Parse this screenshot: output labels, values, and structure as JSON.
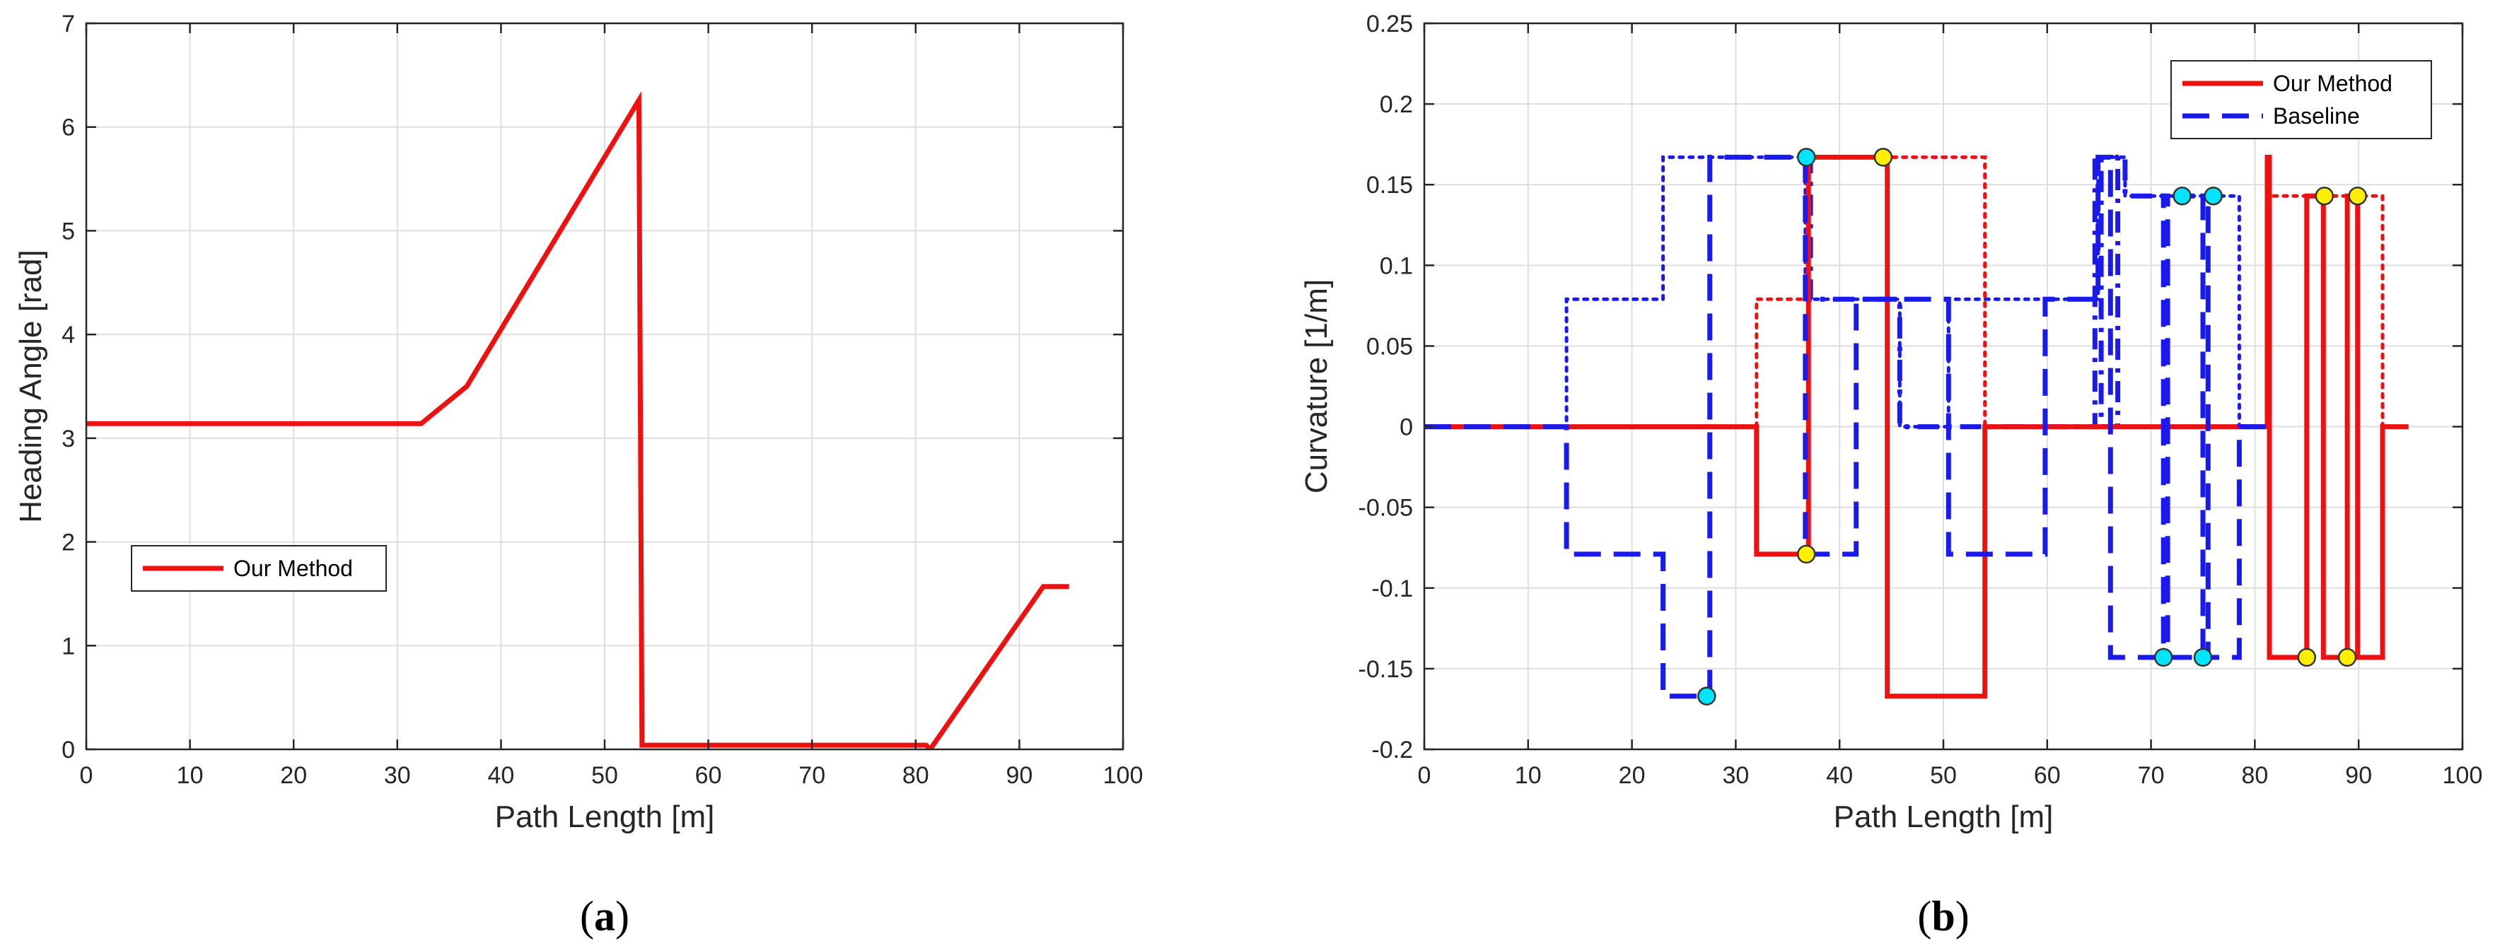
{
  "chart_data": [
    {
      "type": "line",
      "panel_label": "a",
      "xlabel": "Path Length [m]",
      "ylabel": "Heading Angle [rad]",
      "xlim": [
        0,
        100
      ],
      "ylim": [
        0,
        7
      ],
      "xticks": [
        0,
        10,
        20,
        30,
        40,
        50,
        60,
        70,
        80,
        90,
        100
      ],
      "yticks": [
        0,
        1,
        2,
        3,
        4,
        5,
        6,
        7
      ],
      "grid": true,
      "legend_position": "left-lower",
      "series": [
        {
          "name": "Our Method",
          "color": "#ee1111",
          "style": "solid",
          "x": [
            0,
            32.3,
            36.7,
            53.3,
            53.6,
            80.4,
            81.0,
            81.4,
            92.3,
            94.8
          ],
          "y": [
            3.14,
            3.14,
            3.5,
            6.26,
            0.04,
            0.04,
            0.04,
            0.0,
            1.57,
            1.57
          ]
        }
      ]
    },
    {
      "type": "line",
      "panel_label": "b",
      "xlabel": "Path Length [m]",
      "ylabel": "Curvature [1/m]",
      "xlim": [
        0,
        100
      ],
      "ylim": [
        -0.2,
        0.25
      ],
      "xticks": [
        0,
        10,
        20,
        30,
        40,
        50,
        60,
        70,
        80,
        90,
        100
      ],
      "yticks": [
        -0.2,
        -0.15,
        -0.1,
        -0.05,
        0,
        0.05,
        0.1,
        0.15,
        0.2,
        0.25
      ],
      "ytick_labels": [
        "-0.2",
        "-0.15",
        "-0.1",
        "-0.05",
        "0",
        "0.05",
        "0.1",
        "0.15",
        "0.2",
        "0.25"
      ],
      "grid": true,
      "legend_position": "top-right",
      "series": [
        {
          "name": "Our Method",
          "color": "#ee1111",
          "style": "solid",
          "x": [
            0,
            32.0,
            32.0,
            37.0,
            37.0,
            44.6,
            44.6,
            54.0,
            54.0,
            81.2,
            81.2,
            81.4,
            81.4,
            85.0,
            85.0,
            86.6,
            86.6,
            88.9,
            88.9,
            89.9,
            89.9,
            92.3,
            92.3,
            94.8
          ],
          "y": [
            0,
            0,
            -0.079,
            -0.079,
            0.167,
            0.167,
            -0.167,
            -0.167,
            0,
            0,
            0.167,
            0.167,
            -0.143,
            -0.143,
            0.143,
            0.143,
            -0.143,
            -0.143,
            0.143,
            0.143,
            -0.143,
            -0.143,
            0,
            0
          ]
        },
        {
          "name": "Baseline",
          "color": "#1a1aee",
          "style": "dashed",
          "x": [
            0,
            13.7,
            13.7,
            23.0,
            23.0,
            27.5,
            27.5,
            36.7,
            36.7,
            41.6,
            41.6,
            50.5,
            50.5,
            59.8,
            59.8,
            64.9,
            64.9,
            66.1,
            66.1,
            67.3,
            67.3,
            71.2,
            71.2,
            71.6,
            71.6,
            75.0,
            75.0,
            75.5,
            75.5,
            78.5,
            78.5,
            81.2
          ],
          "y": [
            0,
            0,
            -0.079,
            -0.079,
            -0.167,
            -0.167,
            0.167,
            0.167,
            -0.079,
            -0.079,
            0.079,
            0.079,
            -0.079,
            -0.079,
            0.079,
            0.079,
            0.167,
            0.167,
            -0.143,
            -0.143,
            -0.143,
            -0.143,
            0.143,
            0.143,
            -0.143,
            -0.143,
            0.143,
            0.143,
            -0.143,
            -0.143,
            0,
            0
          ]
        },
        {
          "color": "#1a1aee",
          "style": "dotted",
          "x": [
            0,
            13.7,
            13.7,
            23.0,
            23.0,
            36.7,
            36.7,
            45.8,
            45.8,
            50.5,
            50.5,
            64.9,
            64.9,
            67.5,
            67.5,
            78.5,
            78.5
          ],
          "y": [
            0,
            0,
            0.079,
            0.079,
            0.167,
            0.167,
            0.079,
            0.079,
            0,
            0,
            0.079,
            0.079,
            0.167,
            0.167,
            0.143,
            0.143,
            0
          ]
        },
        {
          "color": "#1a1aee",
          "style": "dashdot",
          "x": [
            36.7,
            37.2,
            37.2,
            45.8,
            45.8,
            48.5,
            64.6,
            64.6,
            65.2,
            65.2,
            66.8,
            66.8,
            67.5,
            67.5,
            73.0,
            76.0
          ],
          "y": [
            0.167,
            0.167,
            0.079,
            0.079,
            0,
            0,
            0,
            0.167,
            0.167,
            0,
            0,
            0.167,
            0.167,
            0.143,
            0.143,
            0.143
          ]
        },
        {
          "color": "#ee1111",
          "style": "dotted",
          "x": [
            32.0,
            32.0,
            37.0,
            37.0,
            54.0,
            54.0,
            81.4,
            81.4,
            92.3,
            92.3
          ],
          "y": [
            0,
            0.079,
            0.079,
            0.167,
            0.167,
            0,
            0,
            0.143,
            0.143,
            0
          ]
        }
      ],
      "markers": [
        {
          "color": "#00e5ff",
          "x": [
            27.2,
            36.8,
            71.2,
            73.0,
            75.0,
            76.0
          ],
          "y": [
            -0.167,
            0.167,
            -0.143,
            0.143,
            -0.143,
            0.143
          ]
        },
        {
          "color": "#ffee00",
          "x": [
            36.8,
            44.2,
            85.0,
            86.7,
            88.9,
            89.9
          ],
          "y": [
            -0.079,
            0.167,
            -0.143,
            0.143,
            -0.143,
            0.143
          ]
        }
      ]
    }
  ]
}
